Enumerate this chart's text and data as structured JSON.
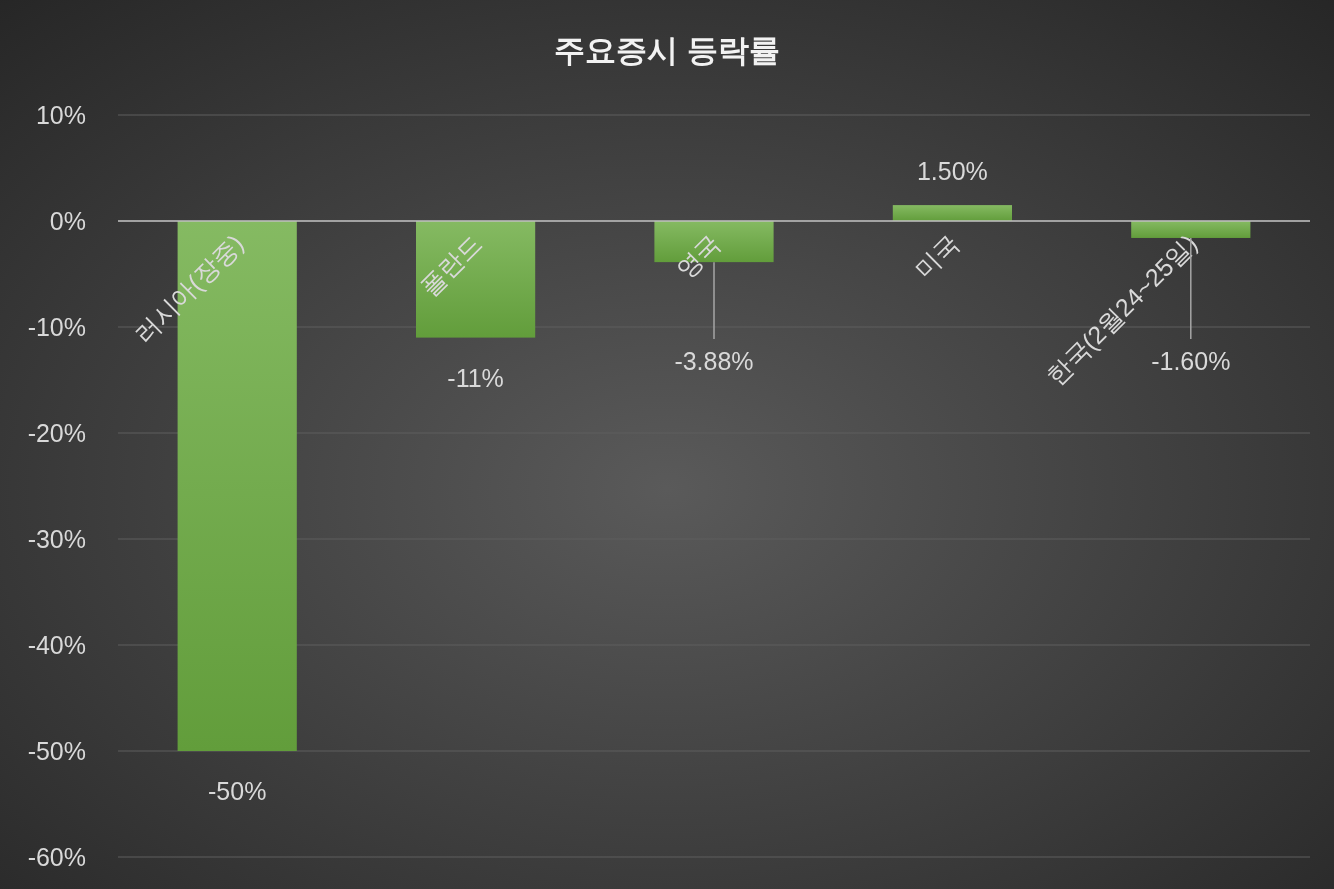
{
  "chart_data": {
    "type": "bar",
    "title": "주요증시 등락률",
    "categories": [
      "러시아(장중)",
      "폴란드",
      "영국",
      "미국",
      "한국(2월24~25일)"
    ],
    "values": [
      -50,
      -11,
      -3.88,
      1.5,
      -1.6
    ],
    "color": "#6aab40",
    "value_labels": [
      "-50%",
      "-11%",
      "-3.88%",
      "1.50%",
      "-1.60%"
    ],
    "ylim": [
      -60,
      10
    ],
    "yticks": [
      {
        "value": 10,
        "label": "10%"
      },
      {
        "value": 0,
        "label": "0%"
      },
      {
        "value": -10,
        "label": "-10%"
      },
      {
        "value": -20,
        "label": "-20%"
      },
      {
        "value": -30,
        "label": "-30%"
      },
      {
        "value": -40,
        "label": "-40%"
      },
      {
        "value": -50,
        "label": "-50%"
      },
      {
        "value": -60,
        "label": "-60%"
      }
    ],
    "grid": "y"
  }
}
